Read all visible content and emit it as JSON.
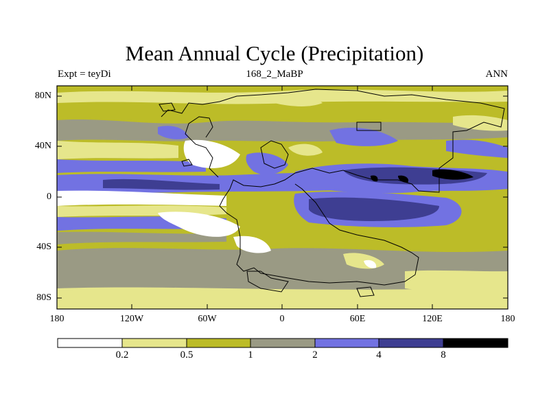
{
  "title": "Mean Annual Cycle (Precipitation)",
  "left_label": "Expt = teyDi",
  "center_label": "168_2_MaBP",
  "right_label": "ANN",
  "lat_ticks": [
    {
      "value": 80,
      "label": "80N"
    },
    {
      "value": 40,
      "label": "40N"
    },
    {
      "value": 0,
      "label": "0"
    },
    {
      "value": -40,
      "label": "40S"
    },
    {
      "value": -80,
      "label": "80S"
    }
  ],
  "lon_ticks": [
    {
      "value": -180,
      "label": "180"
    },
    {
      "value": -120,
      "label": "120W"
    },
    {
      "value": -60,
      "label": "60W"
    },
    {
      "value": 0,
      "label": "0"
    },
    {
      "value": 60,
      "label": "60E"
    },
    {
      "value": 120,
      "label": "120E"
    },
    {
      "value": 180,
      "label": "180"
    }
  ],
  "colorbar": {
    "labels": [
      "0.2",
      "0.5",
      "1",
      "2",
      "4",
      "8"
    ],
    "colors": [
      "#ffffff",
      "#e6e68c",
      "#bcbc28",
      "#9a9a84",
      "#7272e2",
      "#3e3e92",
      "#000000"
    ]
  },
  "colors": {
    "c0": "#ffffff",
    "c1": "#e6e68c",
    "c2": "#bcbc28",
    "c3": "#9a9a84",
    "c4": "#7272e2",
    "c5": "#3e3e92",
    "c6": "#000000"
  }
}
